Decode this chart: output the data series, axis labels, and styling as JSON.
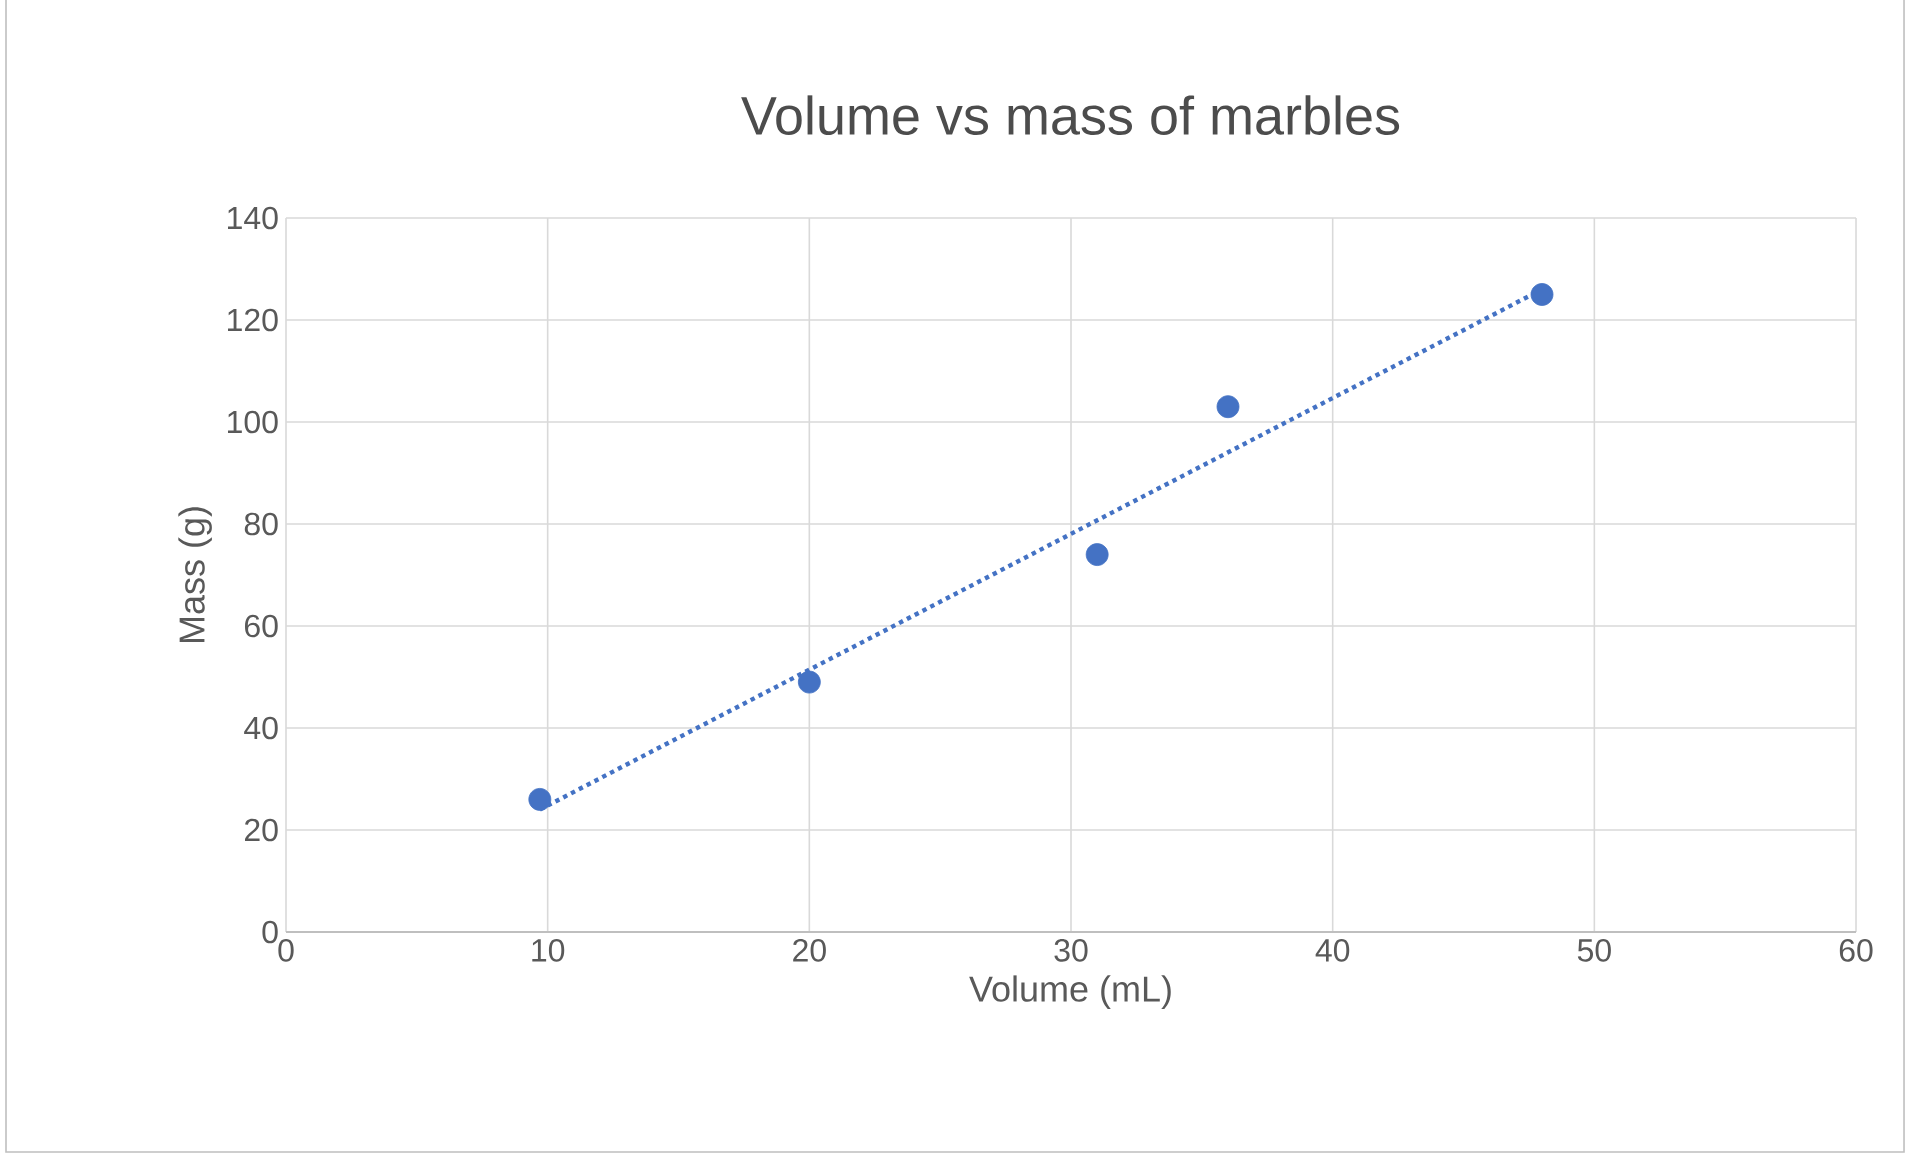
{
  "chart_data": {
    "type": "scatter",
    "title": "Volume vs mass of marbles",
    "xlabel": "Volume (mL)",
    "ylabel": "Mass (g)",
    "series": [
      {
        "color": "#4472c4",
        "marker": "circle",
        "x": [
          9.7,
          20,
          31,
          36,
          48
        ],
        "values": [
          26,
          49,
          74,
          103,
          125
        ]
      },
      {
        "type": "line",
        "color": "#4472c4",
        "marker": "none",
        "line_style": "dotted",
        "x": [
          9.7,
          48
        ],
        "values": [
          24,
          126
        ]
      }
    ],
    "xlim": [
      0,
      60
    ],
    "xticks": [
      0,
      10,
      20,
      30,
      40,
      50,
      60
    ],
    "ylim": [
      0,
      140
    ],
    "yticks": [
      0,
      20,
      40,
      60,
      80,
      100,
      120,
      140
    ],
    "grid": true
  }
}
